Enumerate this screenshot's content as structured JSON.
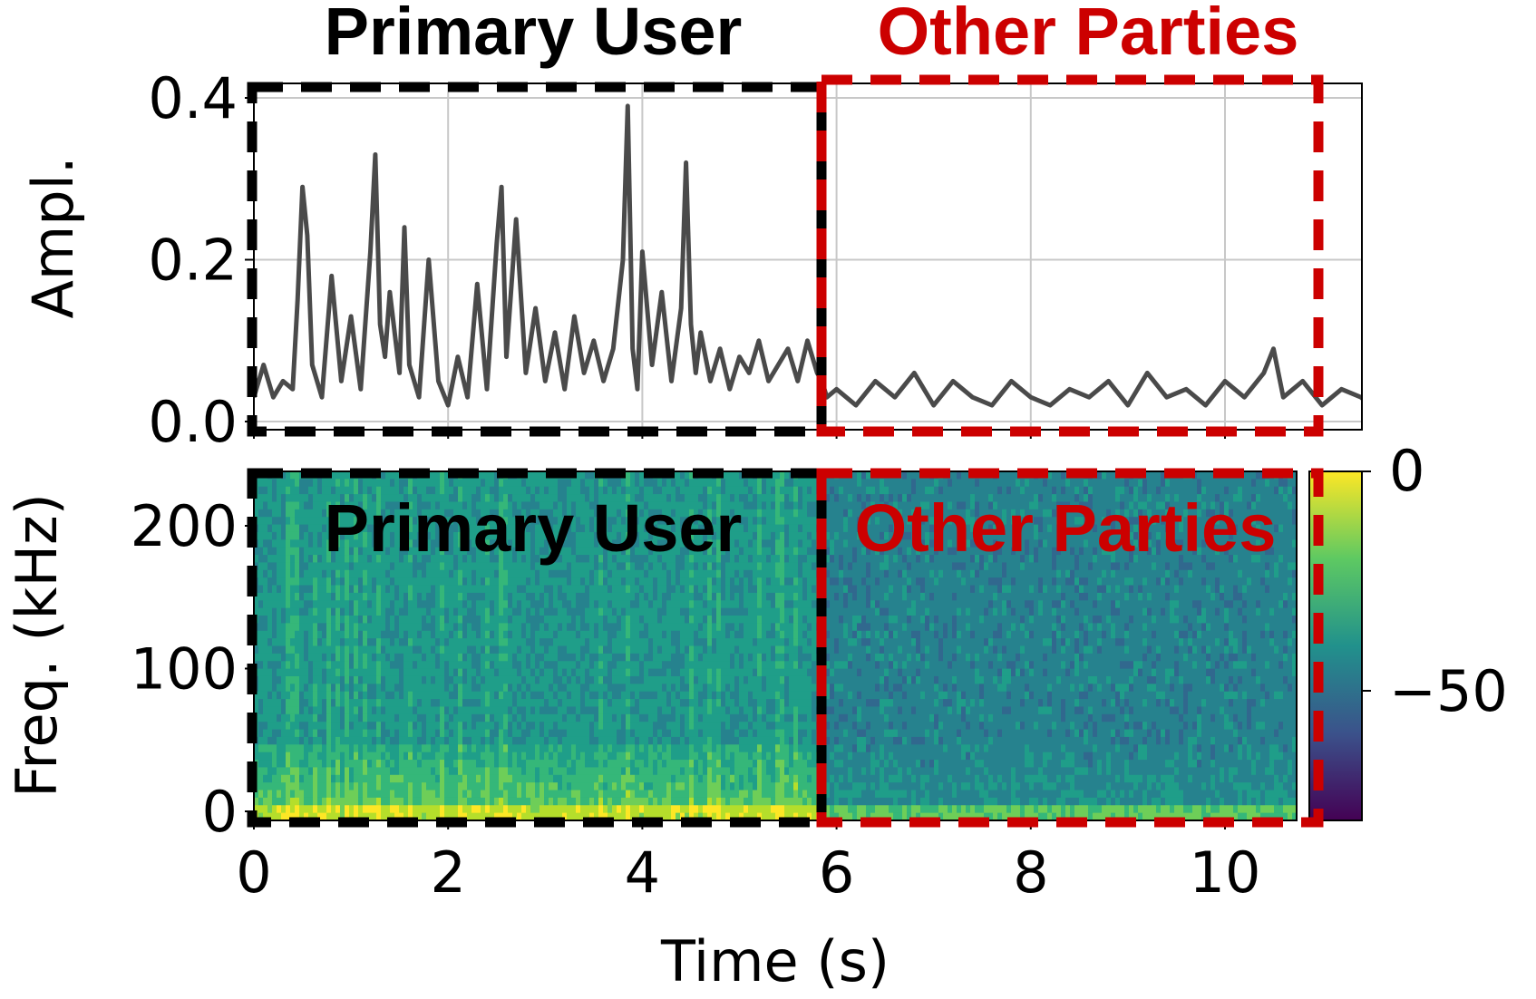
{
  "chart_data": [
    {
      "type": "line",
      "ylabel": "Ampl.",
      "xlim": [
        0,
        11.5
      ],
      "ylim": [
        -0.01,
        0.41
      ],
      "yticks": [
        "0.0",
        "0.2",
        "0.4"
      ],
      "xtick_values": [
        2,
        4,
        6,
        8,
        10
      ],
      "grid": true,
      "regions": [
        {
          "label": "Primary User",
          "x_range": [
            0,
            5.85
          ]
        },
        {
          "label": "Other Parties",
          "x_range": [
            5.85,
            10.95
          ]
        }
      ],
      "series": [
        {
          "x": [
            0.0,
            0.1,
            0.2,
            0.3,
            0.4,
            0.45,
            0.5,
            0.55,
            0.6,
            0.7,
            0.8,
            0.9,
            1.0,
            1.1,
            1.2,
            1.25,
            1.3,
            1.35,
            1.4,
            1.5,
            1.55,
            1.6,
            1.7,
            1.8,
            1.9,
            2.0,
            2.1,
            2.2,
            2.3,
            2.4,
            2.5,
            2.55,
            2.6,
            2.7,
            2.8,
            2.9,
            3.0,
            3.1,
            3.2,
            3.3,
            3.4,
            3.5,
            3.6,
            3.7,
            3.8,
            3.85,
            3.9,
            3.95,
            4.0,
            4.1,
            4.2,
            4.3,
            4.4,
            4.45,
            4.5,
            4.55,
            4.6,
            4.7,
            4.8,
            4.9,
            5.0,
            5.1,
            5.2,
            5.3,
            5.4,
            5.5,
            5.6,
            5.7,
            5.8,
            5.85,
            5.9,
            6.0,
            6.2,
            6.4,
            6.6,
            6.8,
            7.0,
            7.2,
            7.4,
            7.6,
            7.8,
            8.0,
            8.2,
            8.4,
            8.6,
            8.8,
            9.0,
            9.2,
            9.4,
            9.6,
            9.8,
            10.0,
            10.2,
            10.4,
            10.5,
            10.6,
            10.8,
            11.0,
            11.2,
            11.4,
            11.5
          ],
          "values": [
            0.03,
            0.07,
            0.03,
            0.05,
            0.04,
            0.15,
            0.29,
            0.23,
            0.07,
            0.03,
            0.18,
            0.05,
            0.13,
            0.04,
            0.21,
            0.33,
            0.12,
            0.08,
            0.16,
            0.06,
            0.24,
            0.07,
            0.03,
            0.2,
            0.05,
            0.02,
            0.08,
            0.03,
            0.17,
            0.04,
            0.22,
            0.29,
            0.08,
            0.25,
            0.06,
            0.14,
            0.05,
            0.11,
            0.04,
            0.13,
            0.06,
            0.1,
            0.05,
            0.09,
            0.2,
            0.39,
            0.09,
            0.04,
            0.21,
            0.07,
            0.16,
            0.05,
            0.14,
            0.32,
            0.12,
            0.06,
            0.11,
            0.05,
            0.09,
            0.04,
            0.08,
            0.06,
            0.1,
            0.05,
            0.07,
            0.09,
            0.05,
            0.1,
            0.06,
            0.05,
            0.03,
            0.04,
            0.02,
            0.05,
            0.03,
            0.06,
            0.02,
            0.05,
            0.03,
            0.02,
            0.05,
            0.03,
            0.02,
            0.04,
            0.03,
            0.05,
            0.02,
            0.06,
            0.03,
            0.04,
            0.02,
            0.05,
            0.03,
            0.06,
            0.09,
            0.03,
            0.05,
            0.02,
            0.04,
            0.03,
            0.02
          ]
        }
      ]
    },
    {
      "type": "heatmap",
      "xlabel": "Time (s)",
      "ylabel": "Freq. (kHz)",
      "xlim": [
        0,
        11.5
      ],
      "ylim": [
        0,
        230
      ],
      "xticks": [
        "0",
        "2",
        "4",
        "6",
        "8",
        "10"
      ],
      "yticks": [
        "0",
        "100",
        "200"
      ],
      "colorbar": {
        "ticks": [
          "0",
          "−50"
        ],
        "range": [
          -80,
          0
        ],
        "colormap": "viridis"
      },
      "regions": [
        {
          "label": "Primary User",
          "x_range": [
            0,
            5.85
          ]
        },
        {
          "label": "Other Parties",
          "x_range": [
            5.85,
            10.95
          ]
        }
      ]
    }
  ],
  "colors": {
    "primary_user": "#000000",
    "other_parties": "#cc0000",
    "signal_line": "#4a4a4a",
    "grid": "#c8c8c8"
  }
}
